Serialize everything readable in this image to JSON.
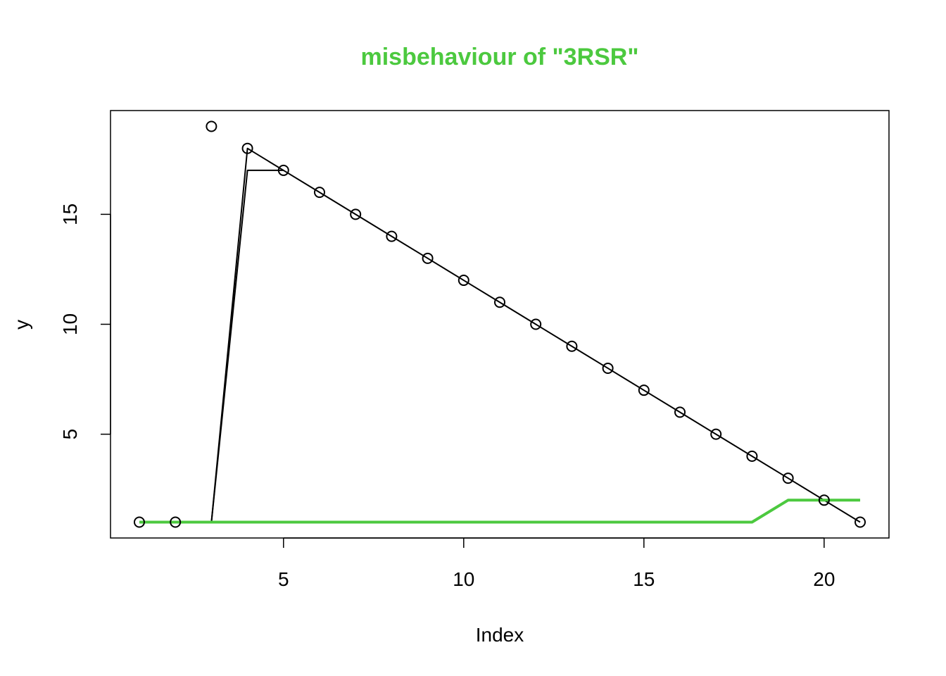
{
  "chart_data": {
    "type": "line",
    "title": "misbehaviour of \"3RSR\"",
    "title_color": "#4CC93F",
    "xlabel": "Index",
    "ylabel": "y",
    "xlim": [
      0.2,
      21.8
    ],
    "ylim": [
      0.28,
      19.72
    ],
    "x_ticks": [
      5,
      10,
      15,
      20
    ],
    "y_ticks": [
      5,
      10,
      15
    ],
    "grid": false,
    "legend": "none",
    "points": {
      "style": "open-circle",
      "color": "#000000",
      "x": [
        1,
        2,
        3,
        4,
        5,
        6,
        7,
        8,
        9,
        10,
        11,
        12,
        13,
        14,
        15,
        16,
        17,
        18,
        19,
        20,
        21
      ],
      "y": [
        1,
        1,
        19,
        18,
        17,
        16,
        15,
        14,
        13,
        12,
        11,
        10,
        9,
        8,
        7,
        6,
        5,
        4,
        3,
        2,
        1
      ]
    },
    "series": [
      {
        "style": "thin-line",
        "color": "#000000",
        "x": [
          3,
          4,
          5,
          6,
          7,
          8,
          9,
          10,
          11,
          12,
          13,
          14,
          15,
          16,
          17,
          18,
          19,
          20,
          21
        ],
        "y": [
          1,
          18,
          17,
          16,
          15,
          14,
          13,
          12,
          11,
          10,
          9,
          8,
          7,
          6,
          5,
          4,
          3,
          2,
          1
        ]
      },
      {
        "style": "thin-step",
        "color": "#000000",
        "x": [
          3,
          4,
          4.2,
          5
        ],
        "y": [
          1,
          17,
          17,
          17
        ]
      },
      {
        "style": "thick-line",
        "color": "#4CC93F",
        "x": [
          1,
          18,
          19,
          21
        ],
        "y": [
          1,
          1,
          2,
          2
        ]
      }
    ]
  }
}
